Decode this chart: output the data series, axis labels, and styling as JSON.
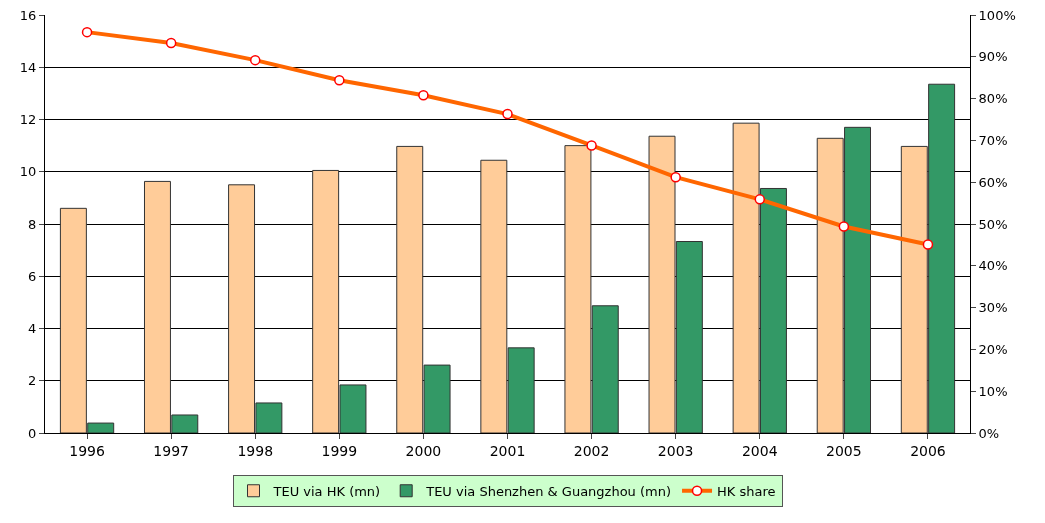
{
  "chart_data": {
    "type": "bar",
    "categories": [
      "1996",
      "1997",
      "1998",
      "1999",
      "2000",
      "2001",
      "2002",
      "2003",
      "2004",
      "2005",
      "2006"
    ],
    "series": [
      {
        "name": "TEU via HK (mn)",
        "color": "#ffcc99",
        "values": [
          8.6,
          9.63,
          9.5,
          10.05,
          10.97,
          10.44,
          11.0,
          11.36,
          11.86,
          11.28,
          10.97
        ]
      },
      {
        "name": "TEU via Shenzhen & Guangzhou (mn)",
        "color": "#339966",
        "values": [
          0.38,
          0.69,
          1.15,
          1.84,
          2.6,
          3.26,
          4.87,
          7.33,
          9.36,
          11.7,
          13.35
        ]
      },
      {
        "name": "HK share",
        "type": "line",
        "axis": "y2",
        "color": "#ff6600",
        "marker": "circle",
        "values": [
          95.9,
          93.3,
          89.2,
          84.4,
          80.8,
          76.3,
          68.8,
          61.2,
          55.9,
          49.4,
          45.1
        ]
      }
    ],
    "ylim": [
      0,
      16
    ],
    "yticks": [
      0,
      2,
      4,
      6,
      8,
      10,
      12,
      14,
      16
    ],
    "y2lim": [
      0,
      100
    ],
    "y2ticks": [
      {
        "value": 0,
        "label": "0%"
      },
      {
        "value": 10,
        "label": "10%"
      },
      {
        "value": 20,
        "label": "20%"
      },
      {
        "value": 30,
        "label": "30%"
      },
      {
        "value": 40,
        "label": "40%"
      },
      {
        "value": 50,
        "label": "50%"
      },
      {
        "value": 60,
        "label": "60%"
      },
      {
        "value": 70,
        "label": "70%"
      },
      {
        "value": 80,
        "label": "80%"
      },
      {
        "value": 90,
        "label": "90%"
      },
      {
        "value": 100,
        "label": "100%"
      }
    ],
    "grid": "y",
    "legend": "bottom"
  }
}
